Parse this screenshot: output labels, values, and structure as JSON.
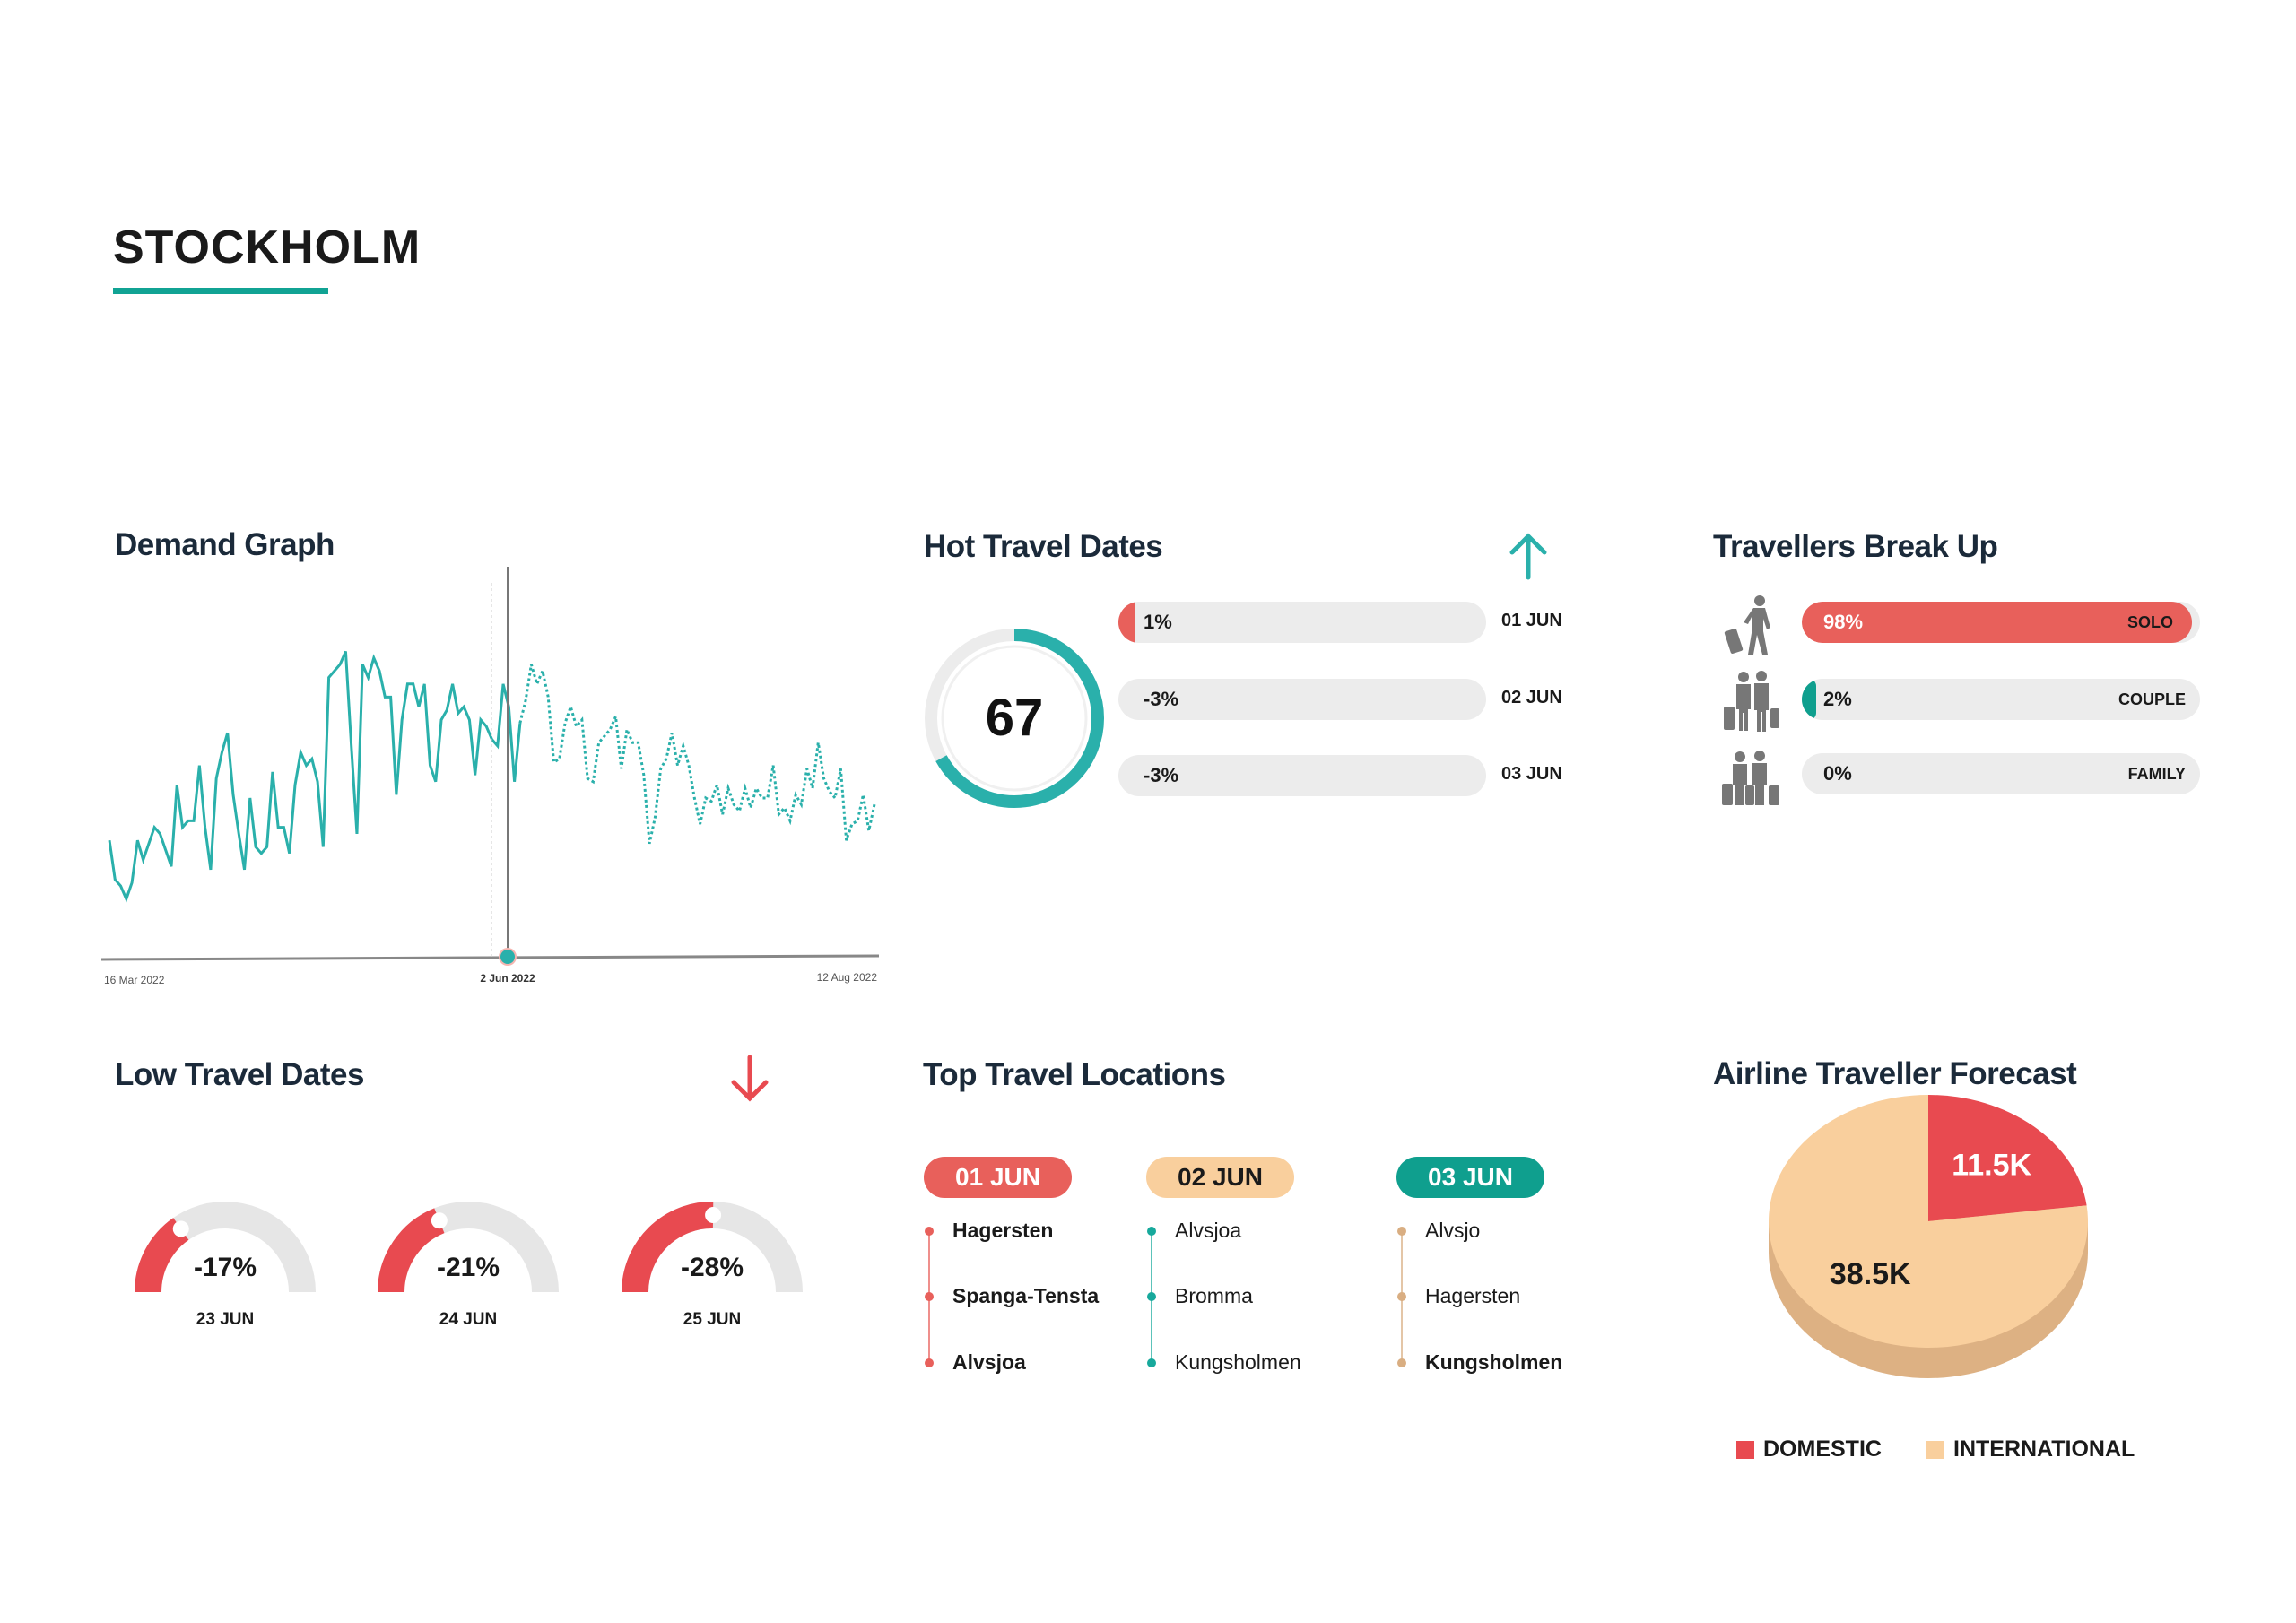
{
  "page": {
    "title": "STOCKHOLM"
  },
  "colors": {
    "teal": "#2ab0ab",
    "red": "#e8605b",
    "peach": "#f9cf9d",
    "dark_teal": "#0f9f8e",
    "heading": "#1b2a3a"
  },
  "demand_graph": {
    "heading": "Demand Graph",
    "chart_data": {
      "type": "line",
      "title": "Demand Graph",
      "x_tick_labels": [
        "16 Mar 2022",
        "2 Jun 2022",
        "12 Aug 2022"
      ],
      "highlighted_x": "2 Jun 2022",
      "ylim": [
        0,
        120
      ],
      "grid": false,
      "series": [
        {
          "style": "solid",
          "values": [
            36,
            24,
            22,
            18,
            23,
            36,
            30,
            35,
            40,
            38,
            33,
            28,
            53,
            40,
            42,
            42,
            59,
            40,
            27,
            55,
            63,
            69,
            50,
            38,
            27,
            49,
            34,
            32,
            34,
            57,
            40,
            40,
            32,
            53,
            63,
            59,
            61,
            54,
            34,
            86,
            88,
            90,
            94,
            65,
            38,
            90,
            86,
            92,
            88,
            80,
            80,
            50,
            73,
            84,
            84,
            77,
            84,
            59,
            54,
            73,
            76,
            84,
            75,
            77,
            73,
            56,
            73,
            71,
            67,
            65,
            84,
            77,
            54,
            72
          ]
        },
        {
          "style": "dotted",
          "values": [
            72,
            79,
            90,
            84,
            88,
            80,
            60,
            61,
            72,
            77,
            71,
            73,
            55,
            54,
            66,
            68,
            70,
            74,
            58,
            70,
            66,
            66,
            56,
            35,
            43,
            58,
            61,
            69,
            59,
            65,
            59,
            49,
            41,
            49,
            48,
            53,
            44,
            52,
            47,
            45,
            52,
            46,
            52,
            49,
            49,
            59,
            44,
            46,
            42,
            50,
            47,
            58,
            52,
            66,
            55,
            51,
            49,
            58,
            36,
            41,
            42,
            50,
            39,
            47
          ]
        }
      ]
    }
  },
  "hot_travel_dates": {
    "heading": "Hot Travel Dates",
    "trend_icon": "arrow-up-icon",
    "score": "67",
    "score_fraction": 0.67,
    "rows": [
      {
        "pct": "1%",
        "value": 1,
        "date": "01 JUN"
      },
      {
        "pct": "-3%",
        "value": -3,
        "date": "02 JUN"
      },
      {
        "pct": "-3%",
        "value": -3,
        "date": "03 JUN"
      }
    ]
  },
  "travellers": {
    "heading": "Travellers Break Up",
    "rows": [
      {
        "icon": "solo-traveller-icon",
        "pct": "98%",
        "value": 98,
        "label": "SOLO",
        "color": "#e8605b"
      },
      {
        "icon": "couple-traveller-icon",
        "pct": "2%",
        "value": 2,
        "label": "COUPLE",
        "color": "#0f9f8e"
      },
      {
        "icon": "family-traveller-icon",
        "pct": "0%",
        "value": 0,
        "label": "FAMILY",
        "color": "#e8605b"
      }
    ]
  },
  "low_travel_dates": {
    "heading": "Low Travel Dates",
    "trend_icon": "arrow-down-icon",
    "gauges": [
      {
        "label": "-17%",
        "value": -17,
        "date": "23 JUN"
      },
      {
        "label": "-21%",
        "value": -21,
        "date": "24 JUN"
      },
      {
        "label": "-28%",
        "value": -28,
        "date": "25 JUN"
      }
    ]
  },
  "top_locations": {
    "heading": "Top Travel Locations",
    "columns": [
      {
        "date": "01 JUN",
        "color": "#e8605b",
        "text_color": "#ffffff",
        "line_color": "#e8605b",
        "items": [
          "Hagersten",
          "Spanga-Tensta",
          "Alvsjoa"
        ]
      },
      {
        "date": "02 JUN",
        "color": "#f9cf9d",
        "text_color": "#1a1a1a",
        "line_color": "#17a99c",
        "items": [
          "Alvsjoa",
          "Bromma",
          "Kungsholmen"
        ]
      },
      {
        "date": "03 JUN",
        "color": "#0f9f8e",
        "text_color": "#ffffff",
        "line_color": "#d9ae82",
        "items": [
          "Alvsjo",
          "Hagersten",
          "Kungsholmen"
        ]
      }
    ]
  },
  "airline_forecast": {
    "heading": "Airline Traveller Forecast",
    "chart_data": {
      "type": "pie",
      "slices": [
        {
          "name": "DOMESTIC",
          "label": "11.5K",
          "value": 11.5,
          "color": "#e84a50"
        },
        {
          "name": "INTERNATIONAL",
          "label": "38.5K",
          "value": 38.5,
          "color": "#f9cf9d"
        }
      ],
      "legend_position": "bottom"
    }
  }
}
